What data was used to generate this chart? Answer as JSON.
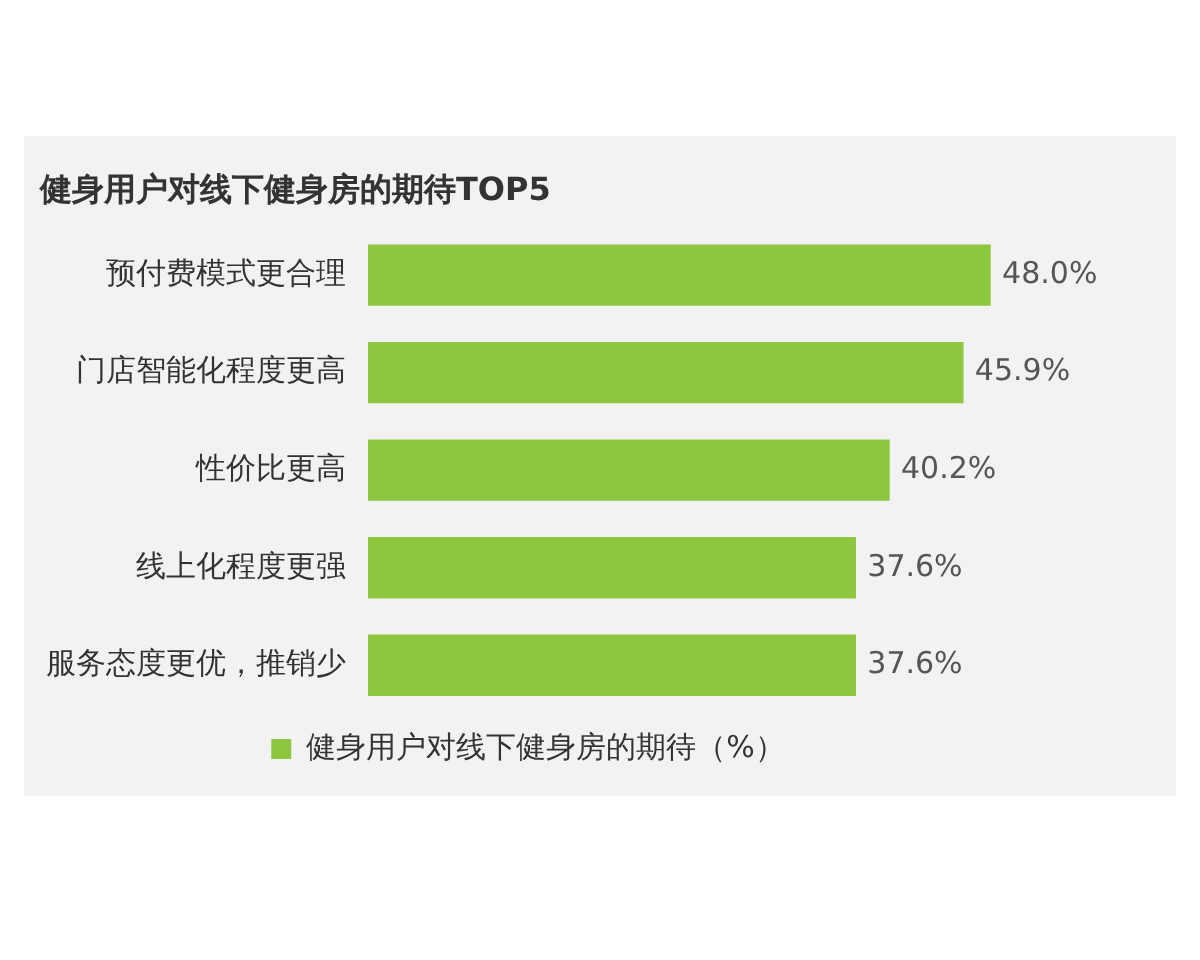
{
  "chart_data": {
    "type": "bar",
    "orientation": "horizontal",
    "title": "健身用户对线下健身房的期待TOP5",
    "categories": [
      "预付费模式更合理",
      "门店智能化程度更高",
      "性价比更高",
      "线上化程度更强",
      "服务态度更优，推销少"
    ],
    "series": [
      {
        "name": "健身用户对线下健身房的期待（%）",
        "color": "#8dc63f",
        "values": [
          48.0,
          45.9,
          40.2,
          37.6,
          37.6
        ],
        "value_labels": [
          "48.0%",
          "45.9%",
          "40.2%",
          "37.6%",
          "37.6%"
        ]
      }
    ],
    "legend": "bottom"
  }
}
